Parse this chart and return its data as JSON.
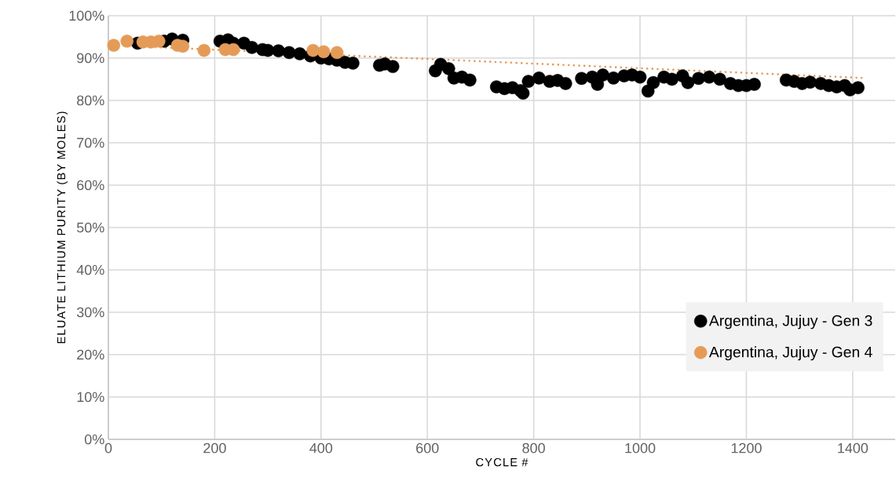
{
  "chart_data": {
    "type": "scatter",
    "xlabel": "CYCLE #",
    "ylabel": "ELUATE LITHIUM PURITY (BY MOLES)",
    "xlim": [
      0,
      1480
    ],
    "xticks": [
      0,
      200,
      400,
      600,
      800,
      1000,
      1200,
      1400
    ],
    "ylim": [
      0,
      100
    ],
    "yticks": [
      {
        "value": 0,
        "label": "0%"
      },
      {
        "value": 10,
        "label": "10%"
      },
      {
        "value": 20,
        "label": "20%"
      },
      {
        "value": 30,
        "label": "30%"
      },
      {
        "value": 40,
        "label": "40%"
      },
      {
        "value": 50,
        "label": "50%"
      },
      {
        "value": 60,
        "label": "60%"
      },
      {
        "value": 70,
        "label": "70%"
      },
      {
        "value": 80,
        "label": "80%"
      },
      {
        "value": 90,
        "label": "90%"
      },
      {
        "value": 100,
        "label": "100%"
      }
    ],
    "grid": true,
    "legend": "bottom right",
    "marker": "circle",
    "series": [
      {
        "name": "Argentina, Jujuy - Gen 3",
        "color": "#000000",
        "x": [
          55,
          65,
          75,
          85,
          95,
          105,
          120,
          140,
          210,
          225,
          235,
          255,
          270,
          290,
          300,
          320,
          340,
          360,
          380,
          400,
          415,
          430,
          445,
          460,
          510,
          520,
          535,
          615,
          625,
          640,
          650,
          665,
          680,
          730,
          745,
          760,
          775,
          780,
          790,
          810,
          830,
          845,
          860,
          890,
          910,
          920,
          930,
          950,
          970,
          985,
          1000,
          1015,
          1025,
          1045,
          1060,
          1080,
          1090,
          1110,
          1130,
          1150,
          1170,
          1185,
          1200,
          1215,
          1275,
          1290,
          1305,
          1320,
          1340,
          1355,
          1370,
          1385,
          1395,
          1410
        ],
        "values": [
          93.5,
          null,
          null,
          null,
          null,
          94,
          94.5,
          94.2,
          94,
          94.3,
          93.5,
          93.5,
          92.5,
          92,
          91.8,
          91.7,
          91.3,
          91,
          90.5,
          90,
          89.8,
          89.5,
          89,
          88.8,
          88.3,
          88.6,
          88,
          87,
          88.5,
          87.5,
          85.3,
          85.5,
          84.8,
          83.2,
          82.8,
          83,
          82.3,
          81.7,
          84.5,
          85.3,
          84.5,
          84.7,
          84,
          85.2,
          85.5,
          83.8,
          86,
          85.3,
          85.8,
          86,
          85.5,
          82.2,
          84.2,
          85.5,
          85,
          85.8,
          84.2,
          85.2,
          85.5,
          85,
          84,
          83.5,
          83.5,
          83.8,
          84.8,
          84.5,
          84,
          84.3,
          84,
          83.5,
          83.2,
          83.5,
          82.5,
          83
        ]
      },
      {
        "name": "Argentina, Jujuy - Gen 4",
        "color": "#e59b58",
        "x": [
          10,
          35,
          65,
          80,
          95,
          130,
          140,
          180,
          220,
          235,
          385,
          405,
          425,
          430
        ],
        "values": [
          93,
          94,
          93.8,
          93.8,
          94,
          93,
          92.8,
          91.8,
          92,
          92,
          91.8,
          91.5,
          null,
          91.3
        ]
      },
      {
        "type": "line",
        "color": "#e59b58",
        "line_style": "dotted",
        "marker": "none",
        "x": [
          10,
          1420
        ],
        "values": [
          93,
          85.3
        ]
      }
    ]
  }
}
